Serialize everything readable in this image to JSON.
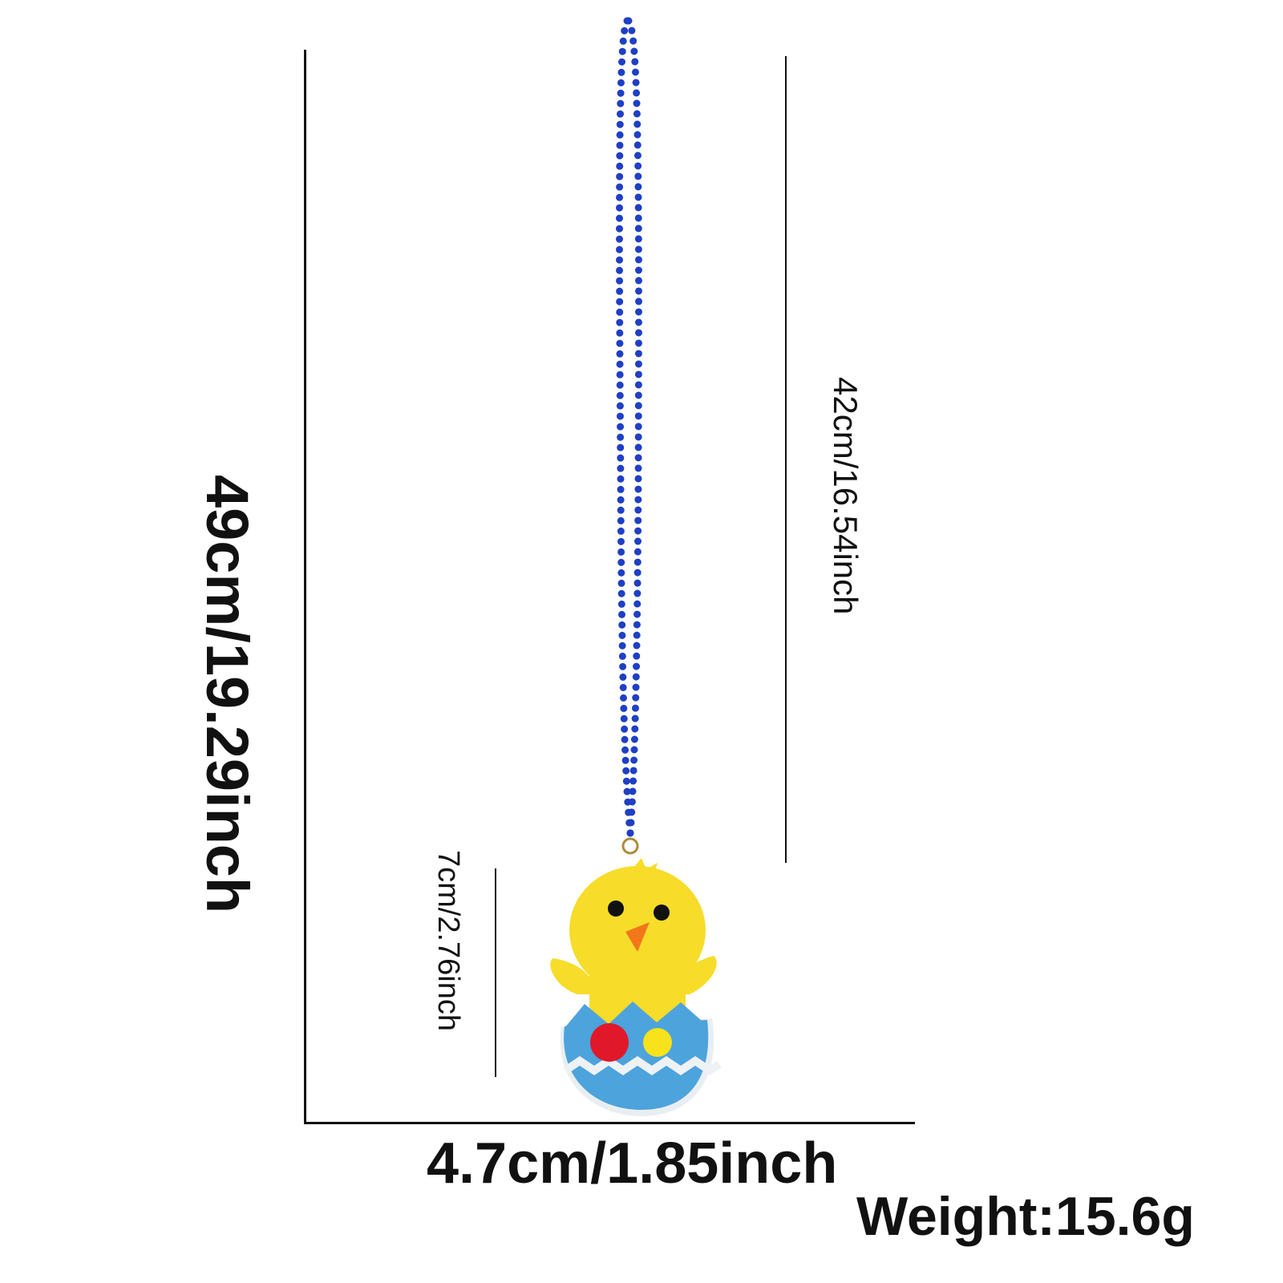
{
  "dimensions": {
    "total_length": "49cm/19.29inch",
    "chain_length": "42cm/16.54inch",
    "pendant_height": "7cm/2.76inch",
    "pendant_width": "4.7cm/1.85inch",
    "weight": "Weight:15.6g"
  },
  "colors": {
    "beads": "#1f3fc4",
    "chick": "#f7dc2a",
    "shell": "#4da3dc",
    "beak": "#f2771b",
    "pompom_red": "#e0182a",
    "pompom_yellow": "#f8e21b"
  }
}
